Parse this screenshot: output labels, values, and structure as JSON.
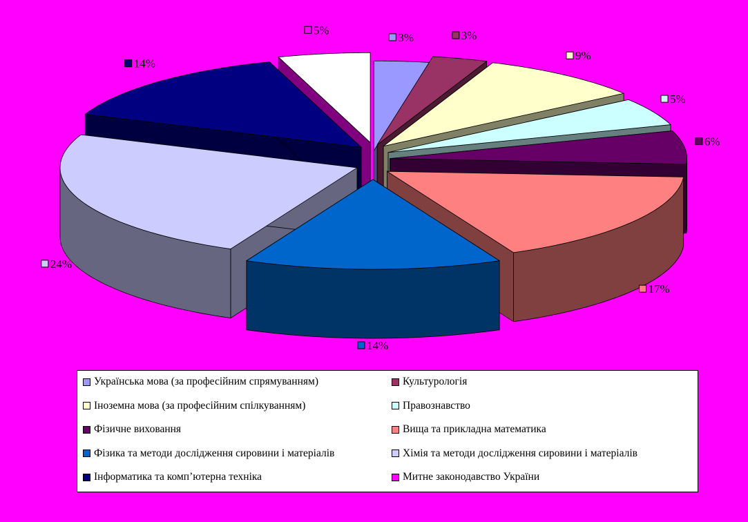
{
  "chart_data": {
    "type": "pie",
    "style": "3d-exploded",
    "slices": [
      {
        "label": "Українська мова (за професійним спрямуванням)",
        "value": 3,
        "display": "3%",
        "color": "#9999ff",
        "side": "#4d4d80"
      },
      {
        "label": "Культурологія",
        "value": 3,
        "display": "3%",
        "color": "#993366",
        "side": "#4d1a33"
      },
      {
        "label": "Іноземна мова (за професійним спілкуванням)",
        "value": 9,
        "display": "9%",
        "color": "#ffffcc",
        "side": "#808066"
      },
      {
        "label": "Правознавство",
        "value": 5,
        "display": "5%",
        "color": "#ccffff",
        "side": "#668080"
      },
      {
        "label": "Фізичне виховання",
        "value": 6,
        "display": "6%",
        "color": "#660066",
        "side": "#330033"
      },
      {
        "label": "Вища та прикладна математика",
        "value": 17,
        "display": "17%",
        "color": "#ff8080",
        "side": "#804040"
      },
      {
        "label": "Фізика та методи дослідження сировини і матеріалів",
        "value": 14,
        "display": "14%",
        "color": "#0066cc",
        "side": "#003366"
      },
      {
        "label": "Хімія та методи дослідження сировини і матеріалів",
        "value": 24,
        "display": "24%",
        "color": "#ccccff",
        "side": "#666680"
      },
      {
        "label": "Інформатика та комп’ютерна техніка",
        "value": 14,
        "display": "14%",
        "color": "#000080",
        "side": "#000040"
      },
      {
        "label": "Митне законодавство України",
        "value": 5,
        "display": "5%",
        "color": "#ffffff",
        "side": "#800080",
        "legend_color": "#ff00ff"
      }
    ],
    "legend_position": "bottom"
  },
  "colors": {
    "background": "#ff00ff",
    "legend_background": "#ffffff"
  }
}
